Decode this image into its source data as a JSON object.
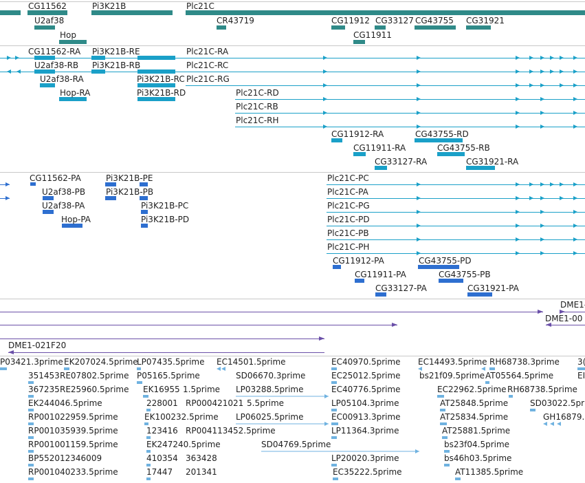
{
  "genes_track": {
    "color": "#2f8a88",
    "labels": [
      "CG11562",
      "Pi3K21B",
      "Plc21C",
      "U2af38",
      "CR43719",
      "CG11912",
      "CG33127",
      "CG43755",
      "CG31921",
      "Hop",
      "CG11911"
    ]
  },
  "transcripts_track": {
    "color": "#1aa0c8",
    "labels": [
      "CG11562-RA",
      "Pi3K21B-RE",
      "Plc21C-RA",
      "U2af38-RB",
      "Pi3K21B-RB",
      "Plc21C-RC",
      "U2af38-RA",
      "Pi3K21B-RC",
      "Plc21C-RG",
      "Hop-RA",
      "Pi3K21B-RD",
      "Plc21C-RD",
      "Plc21C-RB",
      "Plc21C-RH",
      "CG11912-RA",
      "CG43755-RD",
      "CG11911-RA",
      "CG43755-RB",
      "CG33127-RA",
      "CG31921-RA"
    ]
  },
  "proteins_track": {
    "color": "#2e6fd0",
    "labels": [
      "CG11562-PA",
      "Pi3K21B-PE",
      "Plc21C-PC",
      "U2af38-PB",
      "Pi3K21B-PB",
      "Plc21C-PA",
      "U2af38-PA",
      "Pi3K21B-PC",
      "Plc21C-PG",
      "Hop-PA",
      "Pi3K21B-PD",
      "Plc21C-PD",
      "Plc21C-PB",
      "Plc21C-PH",
      "CG11912-PA",
      "CG43755-PD",
      "CG11911-PA",
      "CG43755-PB",
      "CG33127-PA",
      "CG31921-PA"
    ]
  },
  "clones_track": {
    "color": "#6a4fa8",
    "labels": [
      "DME1-",
      "DME1-00",
      "DME1-021F20"
    ]
  },
  "ests_track": {
    "color": "#6fb2e0",
    "labels": [
      "P03421.3prime",
      "EK207024.5prime",
      "LP07435.5prime",
      "EC14501.5prime",
      "EC40970.5prime",
      "EC14493.5prime",
      "RH68738.3prime",
      "3(",
      "351453",
      "RE07802.5prime",
      "P05165.5prime",
      "SD06670.3prime",
      "EC25012.5prime",
      "bs21f09.5prime",
      "AT05564.5prime",
      "EI",
      "367235",
      "RE25960.5prime",
      "EK16955",
      "1.5prime",
      "LP03288.5prime",
      "EC40776.5prime",
      "EC22962.5prime",
      "RH68738.5prime",
      "EK244046.5prime",
      "228001",
      "RP000421021",
      "5.5prime",
      "LP05104.3prime",
      "AT25848.5prime",
      "SD03022.5pr",
      "RP001022959.5prime",
      "EK100232.5prime",
      "LP06025.5prime",
      "EC00913.3prime",
      "AT25834.5prime",
      "GH16879.",
      "RP001035939.5prime",
      "123416",
      "RP004113452.5prime",
      "LP11364.3prime",
      "AT25881.5prime",
      "RP001001159.5prime",
      "EK247240.5prime",
      "SD04769.5prime",
      "bs23f04.5prime",
      "BP552012346009",
      "410354",
      "363428",
      "LP20020.3prime",
      "bs46h03.5prime",
      "RP001040233.5prime",
      "17447",
      "201341",
      "EC35222.5prime",
      "AT11385.5prime"
    ]
  }
}
